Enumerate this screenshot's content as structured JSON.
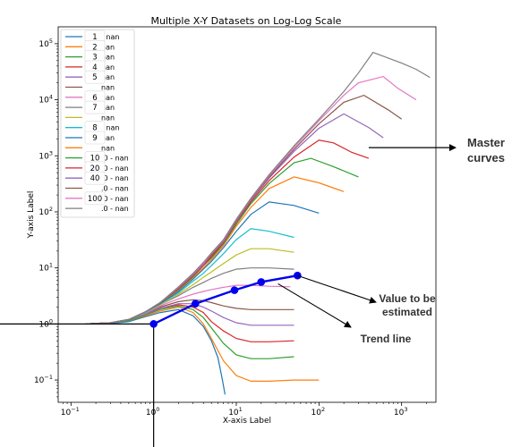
{
  "chart_data": {
    "type": "line",
    "title": "Multiple X-Y Datasets on Log-Log Scale",
    "xlabel": "X-axis Label",
    "ylabel": "Y-axis Label",
    "x_scale": "log",
    "y_scale": "log",
    "xlim": [
      0.07,
      2600
    ],
    "ylim": [
      0.04,
      200000
    ],
    "grid": false,
    "legend_placement": "top-left",
    "x_ticks": [
      {
        "value": 0.1,
        "base": "10",
        "exp": "−1"
      },
      {
        "value": 1,
        "base": "10",
        "exp": "0"
      },
      {
        "value": 10,
        "base": "10",
        "exp": "1"
      },
      {
        "value": 100,
        "base": "10",
        "exp": "2"
      },
      {
        "value": 1000,
        "base": "10",
        "exp": "3"
      }
    ],
    "y_ticks": [
      {
        "value": 0.1,
        "base": "10",
        "exp": "−1"
      },
      {
        "value": 1,
        "base": "10",
        "exp": "0"
      },
      {
        "value": 10,
        "base": "10",
        "exp": "1"
      },
      {
        "value": 100,
        "base": "10",
        "exp": "2"
      },
      {
        "value": 1000,
        "base": "10",
        "exp": "3"
      },
      {
        "value": 10000,
        "base": "10",
        "exp": "4"
      },
      {
        "value": 100000,
        "base": "10",
        "exp": "5"
      }
    ],
    "legend_entries": [
      {
        "label": "1",
        "suffix": "- nan",
        "color": "#1f77b4"
      },
      {
        "label": "2",
        "suffix": "nan",
        "color": "#ff7f0e"
      },
      {
        "label": "3",
        "suffix": "nan",
        "color": "#2ca02c"
      },
      {
        "label": "4",
        "suffix": "nan",
        "color": "#d62728"
      },
      {
        "label": "5",
        "suffix": "nan",
        "color": "#9467bd"
      },
      {
        "label": "",
        "suffix": "nan",
        "color": "#8c564b"
      },
      {
        "label": "6",
        "suffix": "nan",
        "color": "#e377c2"
      },
      {
        "label": "7",
        "suffix": "nan",
        "color": "#7f7f7f"
      },
      {
        "label": "",
        "suffix": "nan",
        "color": "#bcbd22"
      },
      {
        "label": "8",
        "suffix": "- nan",
        "color": "#17becf"
      },
      {
        "label": "9",
        "suffix": "nan",
        "color": "#1f77b4"
      },
      {
        "label": "",
        "suffix": "nan",
        "color": "#ff7f0e"
      },
      {
        "label": "10",
        "suffix": ".0 - nan",
        "color": "#2ca02c"
      },
      {
        "label": "20",
        "suffix": ".0 - nan",
        "color": "#d62728"
      },
      {
        "label": "40",
        "suffix": ".0 - nan",
        "color": "#9467bd"
      },
      {
        "label": "",
        "suffix": ".0 - nan",
        "color": "#8c564b"
      },
      {
        "label": "100",
        "suffix": ".0 - nan",
        "color": "#e377c2"
      },
      {
        "label": "",
        "suffix": ".0 - nan",
        "color": "#7f7f7f"
      }
    ],
    "series": [
      {
        "color": "#1f77b4",
        "x": [
          0.15,
          0.3,
          0.5,
          0.8,
          1.2,
          2,
          3,
          4,
          5,
          6,
          6.8,
          7.3
        ],
        "y": [
          1,
          1.02,
          1.1,
          1.35,
          1.6,
          1.8,
          1.4,
          0.9,
          0.5,
          0.25,
          0.1,
          0.055
        ]
      },
      {
        "color": "#ff7f0e",
        "x": [
          0.15,
          0.3,
          0.5,
          0.8,
          1.2,
          2,
          3,
          4,
          5,
          7,
          10,
          15,
          25,
          50,
          100
        ],
        "y": [
          1,
          1.05,
          1.15,
          1.4,
          1.7,
          2.0,
          1.6,
          1.0,
          0.55,
          0.22,
          0.12,
          0.095,
          0.095,
          0.1,
          0.1
        ]
      },
      {
        "color": "#2ca02c",
        "x": [
          0.15,
          0.3,
          0.5,
          0.8,
          1.2,
          2,
          3,
          4,
          5,
          7,
          10,
          15,
          25,
          50
        ],
        "y": [
          1,
          1.05,
          1.15,
          1.45,
          1.8,
          2.1,
          1.8,
          1.3,
          0.85,
          0.45,
          0.28,
          0.24,
          0.24,
          0.26
        ]
      },
      {
        "color": "#d62728",
        "x": [
          0.15,
          0.3,
          0.5,
          0.8,
          1.2,
          2,
          3,
          4,
          5,
          7,
          10,
          15,
          25,
          50
        ],
        "y": [
          1,
          1.05,
          1.2,
          1.5,
          1.9,
          2.2,
          2.0,
          1.6,
          1.1,
          0.75,
          0.55,
          0.48,
          0.48,
          0.5
        ]
      },
      {
        "color": "#9467bd",
        "x": [
          0.15,
          0.3,
          0.5,
          0.8,
          1.2,
          2,
          3,
          4,
          5,
          7,
          10,
          15,
          25,
          50
        ],
        "y": [
          1,
          1.05,
          1.2,
          1.5,
          1.9,
          2.3,
          2.3,
          2.0,
          1.7,
          1.3,
          1.05,
          0.95,
          0.95,
          0.95
        ]
      },
      {
        "color": "#8c564b",
        "x": [
          0.15,
          0.3,
          0.5,
          0.8,
          1.2,
          2,
          3,
          4,
          5,
          7,
          10,
          15,
          25,
          50
        ],
        "y": [
          1,
          1.05,
          1.2,
          1.55,
          2.0,
          2.5,
          2.7,
          2.6,
          2.4,
          2.1,
          1.9,
          1.8,
          1.8,
          1.8
        ]
      },
      {
        "color": "#e377c2",
        "x": [
          0.15,
          0.3,
          0.5,
          0.8,
          1.2,
          2,
          3,
          4,
          5,
          7,
          10,
          15,
          25,
          45
        ],
        "y": [
          1,
          1.05,
          1.2,
          1.55,
          2.1,
          2.8,
          3.4,
          3.8,
          4.1,
          4.5,
          4.9,
          4.9,
          4.7,
          4.6
        ]
      },
      {
        "color": "#7f7f7f",
        "x": [
          0.15,
          0.3,
          0.5,
          0.8,
          1.2,
          2,
          3,
          4,
          5,
          7,
          10,
          15,
          25,
          50
        ],
        "y": [
          1,
          1.05,
          1.2,
          1.6,
          2.2,
          3.2,
          4.5,
          5.5,
          6.5,
          8,
          9.5,
          10,
          10,
          9.5
        ]
      },
      {
        "color": "#bcbd22",
        "x": [
          0.15,
          0.3,
          0.5,
          0.8,
          1.2,
          2,
          3,
          4,
          5,
          7,
          10,
          15,
          25,
          50
        ],
        "y": [
          1,
          1.05,
          1.2,
          1.6,
          2.2,
          3.4,
          5,
          6.8,
          8.5,
          12,
          17,
          22,
          22,
          19
        ]
      },
      {
        "color": "#17becf",
        "x": [
          0.15,
          0.3,
          0.5,
          0.8,
          1.2,
          2,
          3,
          4,
          5,
          7,
          10,
          15,
          25,
          50
        ],
        "y": [
          1,
          1.05,
          1.2,
          1.6,
          2.3,
          3.6,
          5.8,
          8,
          11,
          18,
          32,
          50,
          45,
          35
        ]
      },
      {
        "color": "#1f77b4",
        "x": [
          0.15,
          0.3,
          0.5,
          0.8,
          1.2,
          2,
          3,
          4,
          5,
          7,
          10,
          15,
          25,
          50,
          100
        ],
        "y": [
          1,
          1.05,
          1.2,
          1.65,
          2.3,
          3.8,
          6.3,
          9.5,
          13,
          23,
          45,
          90,
          150,
          130,
          95
        ]
      },
      {
        "color": "#ff7f0e",
        "x": [
          0.15,
          0.3,
          0.5,
          0.8,
          1.2,
          2,
          3,
          4,
          5,
          7,
          10,
          15,
          25,
          50,
          100,
          200
        ],
        "y": [
          1,
          1.05,
          1.2,
          1.65,
          2.4,
          4,
          6.7,
          10,
          14,
          25,
          55,
          120,
          260,
          420,
          330,
          230
        ]
      },
      {
        "color": "#2ca02c",
        "x": [
          0.15,
          0.3,
          0.5,
          0.8,
          1.2,
          2,
          3,
          4,
          5,
          7,
          10,
          15,
          25,
          50,
          80,
          150,
          300
        ],
        "y": [
          1,
          1.05,
          1.2,
          1.65,
          2.4,
          4.1,
          7,
          11,
          15,
          27,
          60,
          140,
          320,
          750,
          900,
          640,
          420
        ]
      },
      {
        "color": "#d62728",
        "x": [
          0.15,
          0.3,
          0.5,
          0.8,
          1.2,
          2,
          3,
          4,
          5,
          7,
          10,
          15,
          25,
          50,
          100,
          150,
          250,
          400
        ],
        "y": [
          1,
          1.05,
          1.2,
          1.65,
          2.4,
          4.2,
          7.2,
          11,
          16,
          28,
          65,
          150,
          360,
          950,
          1900,
          1700,
          1150,
          900
        ]
      },
      {
        "color": "#9467bd",
        "x": [
          0.15,
          0.3,
          0.5,
          0.8,
          1.2,
          2,
          3,
          4,
          5,
          7,
          10,
          15,
          25,
          50,
          100,
          200,
          400,
          600
        ],
        "y": [
          1,
          1.05,
          1.2,
          1.65,
          2.4,
          4.3,
          7.4,
          11.5,
          17,
          29,
          68,
          160,
          400,
          1200,
          3100,
          5600,
          3200,
          2100
        ]
      },
      {
        "color": "#8c564b",
        "x": [
          0.15,
          0.3,
          0.5,
          0.8,
          1.2,
          2,
          3,
          4,
          5,
          7,
          10,
          15,
          25,
          50,
          100,
          200,
          350,
          700,
          1000
        ],
        "y": [
          1,
          1.05,
          1.2,
          1.65,
          2.4,
          4.4,
          7.6,
          12,
          17,
          30,
          70,
          165,
          420,
          1300,
          3700,
          9000,
          12000,
          6500,
          4500
        ]
      },
      {
        "color": "#e377c2",
        "x": [
          0.15,
          0.3,
          0.5,
          0.8,
          1.2,
          2,
          3,
          4,
          5,
          7,
          10,
          15,
          25,
          50,
          100,
          200,
          300,
          600,
          900,
          1500
        ],
        "y": [
          1,
          1.05,
          1.2,
          1.65,
          2.4,
          4.5,
          7.8,
          12,
          18,
          31,
          72,
          170,
          440,
          1400,
          4200,
          12000,
          20000,
          26000,
          16000,
          10000
        ]
      },
      {
        "color": "#7f7f7f",
        "x": [
          0.15,
          0.3,
          0.5,
          0.8,
          1.2,
          2,
          3,
          4,
          5,
          7,
          10,
          15,
          25,
          50,
          100,
          200,
          300,
          450,
          1000,
          1500,
          2200
        ],
        "y": [
          1,
          1.05,
          1.2,
          1.65,
          2.4,
          4.6,
          8,
          12.5,
          18.5,
          32,
          74,
          175,
          460,
          1500,
          4500,
          14000,
          30000,
          70000,
          45000,
          35000,
          25000
        ]
      }
    ],
    "trend_line": {
      "color": "#0000ee",
      "x": [
        1,
        3.2,
        9.5,
        20,
        55
      ],
      "y": [
        1,
        2.3,
        4,
        5.6,
        7.3
      ]
    },
    "reference_lines": {
      "x": 1,
      "y": 1
    },
    "annotations": [
      {
        "text_lines": [
          "Master",
          "curves"
        ],
        "arrow_to_x": 400,
        "arrow_to_y": 1400
      },
      {
        "text_lines": [
          "Value to be",
          "estimated"
        ],
        "arrow_from_x": 55,
        "arrow_from_y": 7.3
      },
      {
        "text_lines": [
          "Trend line"
        ],
        "arrow_from_x": 32,
        "arrow_from_y": 5.2
      }
    ]
  }
}
